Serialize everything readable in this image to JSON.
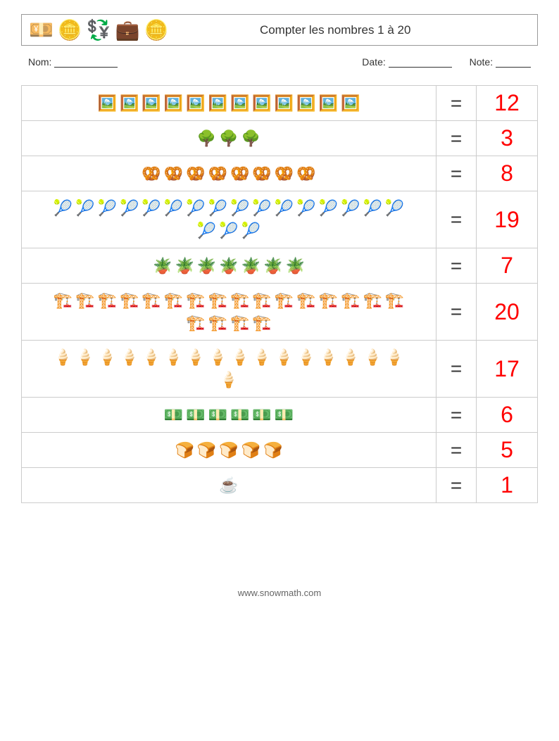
{
  "header": {
    "title": "Compter les nombres 1 à 20",
    "icons": [
      "💴",
      "🪙",
      "💱",
      "💼",
      "🪙"
    ]
  },
  "info": {
    "name_label": "Nom:",
    "date_label": "Date:",
    "note_label": "Note:"
  },
  "rows": [
    {
      "emoji": "🖼️",
      "count": 12,
      "answer": "12",
      "per_row": 10
    },
    {
      "emoji": "🌳",
      "count": 3,
      "answer": "3",
      "per_row": 10
    },
    {
      "emoji": "🥨",
      "count": 8,
      "answer": "8",
      "per_row": 10
    },
    {
      "emoji": "🎾",
      "count": 19,
      "answer": "19",
      "per_row": 10
    },
    {
      "emoji": "🪴",
      "count": 7,
      "answer": "7",
      "per_row": 10
    },
    {
      "emoji": "🏗️",
      "count": 20,
      "answer": "20",
      "per_row": 10
    },
    {
      "emoji": "🍦",
      "count": 17,
      "answer": "17",
      "per_row": 10
    },
    {
      "emoji": "💵",
      "count": 6,
      "answer": "6",
      "per_row": 10
    },
    {
      "emoji": "🍞",
      "count": 5,
      "answer": "5",
      "per_row": 10
    },
    {
      "emoji": "☕",
      "count": 1,
      "answer": "1",
      "per_row": 10
    }
  ],
  "equals": "=",
  "footer": "www.snowmath.com",
  "style": {
    "answer_color": "#ff0000",
    "border_color": "#cccccc",
    "header_border": "#999999",
    "title_fontsize": 17,
    "eq_fontsize": 28,
    "ans_fontsize": 32,
    "item_fontsize": 22
  }
}
